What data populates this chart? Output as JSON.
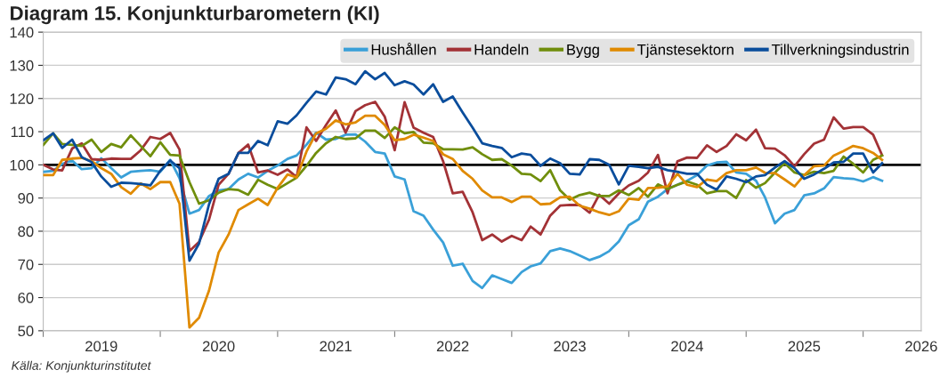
{
  "chart_data": {
    "type": "line",
    "title": "Diagram 15. Konjunkturbarometern (KI)",
    "x": [
      "2019-01",
      "2019-02",
      "2019-03",
      "2019-04",
      "2019-05",
      "2019-06",
      "2019-07",
      "2019-08",
      "2019-09",
      "2019-10",
      "2019-11",
      "2019-12",
      "2020-01",
      "2020-02",
      "2020-03",
      "2020-04",
      "2020-05",
      "2020-06",
      "2020-07",
      "2020-08",
      "2020-09",
      "2020-10",
      "2020-11",
      "2020-12",
      "2021-01",
      "2021-02",
      "2021-03",
      "2021-04",
      "2021-05",
      "2021-06",
      "2021-07",
      "2021-08",
      "2021-09",
      "2021-10",
      "2021-11",
      "2021-12",
      "2022-01",
      "2022-02",
      "2022-03",
      "2022-04",
      "2022-05",
      "2022-06",
      "2022-07",
      "2022-08",
      "2022-09",
      "2022-10",
      "2022-11",
      "2022-12",
      "2023-01",
      "2023-02",
      "2023-03",
      "2023-04",
      "2023-05",
      "2023-06",
      "2023-07",
      "2023-08",
      "2023-09",
      "2023-10",
      "2023-11",
      "2023-12",
      "2024-01",
      "2024-02",
      "2024-03",
      "2024-04",
      "2024-05",
      "2024-06",
      "2024-07",
      "2024-08",
      "2024-09",
      "2024-10",
      "2024-11",
      "2024-12",
      "2025-01",
      "2025-02",
      "2025-03",
      "2025-04",
      "2025-05",
      "2025-06",
      "2025-07",
      "2025-08",
      "2025-09",
      "2025-10",
      "2025-11",
      "2025-12",
      "2026-01",
      "2026-02",
      "2026-03"
    ],
    "series": [
      {
        "name": "Hushållen",
        "color": "#3aa0d8",
        "values": [
          97.9,
          98.2,
          100.3,
          101.3,
          98.7,
          99,
          102,
          99,
          96.2,
          97.9,
          98.2,
          98.4,
          97.9,
          101.5,
          96,
          85.3,
          86.4,
          90.6,
          92.3,
          92.7,
          95.6,
          97.3,
          96.2,
          98.2,
          99.8,
          101.8,
          102.8,
          106.1,
          109.7,
          107.6,
          107.8,
          109.1,
          109.2,
          107,
          103.9,
          103.4,
          96.5,
          95.6,
          86,
          84.7,
          80.5,
          76.6,
          69.6,
          70.2,
          65,
          62.9,
          66.7,
          65.6,
          64.4,
          67.7,
          69.4,
          70.3,
          74,
          74.8,
          74,
          72.7,
          71.3,
          72.3,
          74,
          76.9,
          81.8,
          83.6,
          88.9,
          90.4,
          92.7,
          94,
          95.2,
          96.9,
          99.8,
          100.7,
          100.9,
          97.7,
          97.3,
          95.2,
          90.2,
          82.4,
          85.3,
          86.4,
          90.8,
          91.4,
          92.9,
          96.3,
          96,
          95.8,
          95,
          96.3,
          95.2
        ]
      },
      {
        "name": "Handeln",
        "color": "#a33236",
        "values": [
          100,
          98.6,
          98.3,
          104.9,
          106.5,
          101.7,
          101.5,
          101.9,
          101.8,
          101.8,
          104.4,
          108.4,
          107.8,
          109.6,
          104.6,
          74,
          76.8,
          83.5,
          94,
          97.3,
          103.6,
          106.1,
          97.7,
          98.3,
          97,
          98.6,
          96.3,
          111.3,
          107.2,
          112,
          116.4,
          109.7,
          116.2,
          118,
          119,
          114.5,
          104.4,
          118.9,
          111.2,
          109.7,
          108.4,
          101.1,
          91.4,
          91.9,
          85.7,
          77.3,
          79,
          76.9,
          78.6,
          77.3,
          81.4,
          79,
          84.7,
          87.7,
          87.9,
          87.9,
          85.6,
          91,
          88.3,
          91.4,
          93.8,
          95.2,
          97.7,
          103,
          91.4,
          101.1,
          102.2,
          102.1,
          105.9,
          103.9,
          105.7,
          109.2,
          107.4,
          110.6,
          105,
          104.9,
          102.9,
          99.6,
          103.2,
          106.4,
          107.6,
          114.3,
          110.9,
          111.4,
          111.4,
          109.1,
          102.9
        ]
      },
      {
        "name": "Bygg",
        "color": "#708e0c",
        "values": [
          106,
          109.5,
          106.3,
          106,
          105.7,
          107.6,
          103.9,
          106.3,
          105.3,
          108.9,
          105.7,
          102.6,
          106.8,
          103,
          102.8,
          94.8,
          88.3,
          89.3,
          91.6,
          92.7,
          92.4,
          91,
          95.5,
          94,
          92.7,
          94.5,
          96.1,
          99.7,
          103.6,
          106.5,
          108.4,
          107.8,
          108,
          110.3,
          110.3,
          108.1,
          111.3,
          109.5,
          109.9,
          106.7,
          106.5,
          104.7,
          104.7,
          104.6,
          105.3,
          103.2,
          101.5,
          101.7,
          99.8,
          97.3,
          97.1,
          95.1,
          98.4,
          92.3,
          89.5,
          90.9,
          91.6,
          90.6,
          90.6,
          92.3,
          90.9,
          93,
          90.4,
          94.1,
          92.7,
          94,
          95,
          94,
          91.4,
          92.1,
          92.1,
          90,
          95.4,
          93.1,
          94.5,
          97.7,
          100.5,
          97.7,
          96.9,
          97.9,
          97.5,
          98.2,
          102.5,
          100.3,
          97.7,
          101.5,
          102.8
        ]
      },
      {
        "name": "Tjänstesektorn",
        "color": "#e08a00",
        "values": [
          96.9,
          96.9,
          101.5,
          101.9,
          102.1,
          101.1,
          99,
          97.3,
          93.3,
          91.3,
          94.4,
          92.7,
          94.8,
          94.8,
          88.3,
          51,
          53.9,
          62.1,
          73.6,
          79,
          86.4,
          88.1,
          89.8,
          87.9,
          93.1,
          97.1,
          96.2,
          104,
          109.5,
          110.9,
          113.4,
          112.2,
          112.8,
          114.8,
          114.8,
          112,
          107.4,
          107.8,
          109.1,
          108.2,
          107.2,
          103.2,
          101.8,
          98.2,
          95.8,
          92.3,
          90.2,
          90.2,
          88.8,
          90.4,
          90.4,
          88.1,
          88.3,
          90.2,
          90.4,
          87.7,
          86.8,
          85.7,
          84.9,
          86,
          89.8,
          89.5,
          93,
          93.1,
          93.5,
          97.3,
          94,
          93.3,
          95.6,
          95.1,
          97.5,
          98.4,
          98.4,
          99.2,
          97.6,
          97.5,
          95.6,
          93.5,
          96.9,
          99.6,
          99.8,
          102.8,
          104.2,
          105.7,
          105,
          103.6,
          101.5
        ]
      },
      {
        "name": "Tillverkningsindustrin",
        "color": "#0a4d9c",
        "values": [
          107.4,
          109.5,
          105.1,
          107.6,
          102.3,
          100.8,
          96.5,
          93.4,
          94.6,
          94.5,
          94.2,
          93.8,
          98.2,
          101.3,
          99,
          71.1,
          76.3,
          88.1,
          95.8,
          97.3,
          103.6,
          103.6,
          107.2,
          105.9,
          113.1,
          112.4,
          114.9,
          118.7,
          122.1,
          121.2,
          126.3,
          125.8,
          124.3,
          128.2,
          125.8,
          127.7,
          124,
          125.2,
          124.2,
          121.2,
          124.3,
          119,
          120.6,
          115.8,
          111.2,
          106.5,
          105.7,
          105.1,
          102.3,
          103.4,
          103,
          99.7,
          101.9,
          100.5,
          97.3,
          97.1,
          101.7,
          101.5,
          100,
          94.1,
          99.7,
          99.4,
          99,
          99.4,
          98.4,
          97.9,
          97.3,
          97.3,
          94,
          92.5,
          96.5,
          95.8,
          94.8,
          96.5,
          96.9,
          99.2,
          101.1,
          99,
          95.8,
          97.1,
          98.8,
          100.7,
          100.9,
          103.4,
          103.4,
          97.7,
          100.5
        ]
      }
    ],
    "xlim": [
      "2019-01",
      "2026-07"
    ],
    "xticks": [
      {
        "value": "2019-01",
        "label": null
      },
      {
        "value": "2019-07",
        "label": "2019"
      },
      {
        "value": "2020-01",
        "label": null
      },
      {
        "value": "2020-07",
        "label": "2020"
      },
      {
        "value": "2021-01",
        "label": null
      },
      {
        "value": "2021-07",
        "label": "2021"
      },
      {
        "value": "2022-01",
        "label": null
      },
      {
        "value": "2022-07",
        "label": "2022"
      },
      {
        "value": "2023-01",
        "label": null
      },
      {
        "value": "2023-07",
        "label": "2023"
      },
      {
        "value": "2024-01",
        "label": null
      },
      {
        "value": "2024-07",
        "label": "2024"
      },
      {
        "value": "2025-01",
        "label": null
      },
      {
        "value": "2025-07",
        "label": "2025"
      },
      {
        "value": "2026-01",
        "label": null
      },
      {
        "value": "2026-07",
        "label": "2026"
      }
    ],
    "ylim": [
      50,
      140
    ],
    "yticks": [
      50,
      60,
      70,
      80,
      90,
      100,
      110,
      120,
      130,
      140
    ],
    "ref_lines": [
      {
        "axis": "y",
        "value": 100,
        "label": null,
        "color": "#000000"
      }
    ],
    "grid": "y",
    "legend": "top right",
    "line_style": "solid",
    "marker": "none",
    "annotations": [
      "Källa: Konjunkturinstitutet"
    ]
  }
}
